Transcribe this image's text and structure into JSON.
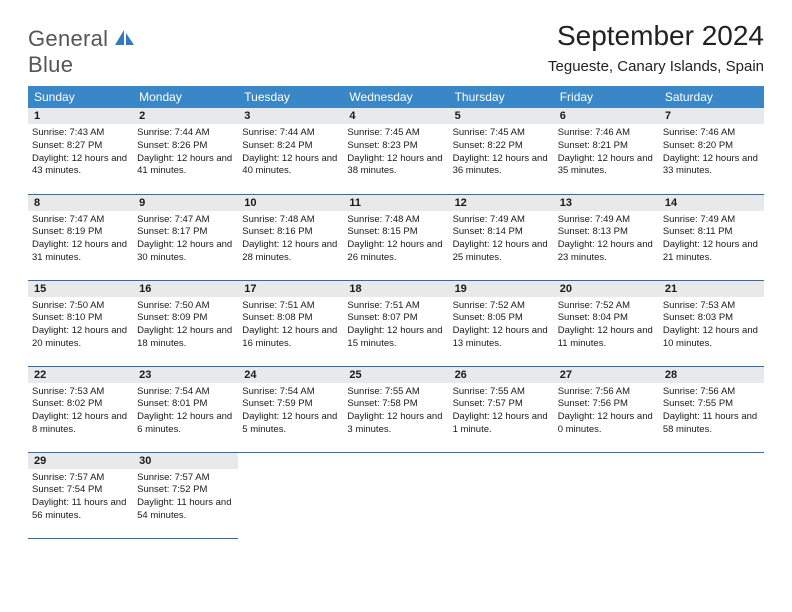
{
  "logo": {
    "line1": "General",
    "line2": "Blue"
  },
  "title": "September 2024",
  "location": "Tegueste, Canary Islands, Spain",
  "colors": {
    "header_bg": "#3a87c8",
    "header_fg": "#ffffff",
    "daynum_bg": "#e7e9ea",
    "row_border": "#2f6ea8",
    "logo_blue": "#2f7bbf"
  },
  "weekdays": [
    "Sunday",
    "Monday",
    "Tuesday",
    "Wednesday",
    "Thursday",
    "Friday",
    "Saturday"
  ],
  "days": [
    {
      "n": 1,
      "sr": "7:43 AM",
      "ss": "8:27 PM",
      "dl": "12 hours and 43 minutes."
    },
    {
      "n": 2,
      "sr": "7:44 AM",
      "ss": "8:26 PM",
      "dl": "12 hours and 41 minutes."
    },
    {
      "n": 3,
      "sr": "7:44 AM",
      "ss": "8:24 PM",
      "dl": "12 hours and 40 minutes."
    },
    {
      "n": 4,
      "sr": "7:45 AM",
      "ss": "8:23 PM",
      "dl": "12 hours and 38 minutes."
    },
    {
      "n": 5,
      "sr": "7:45 AM",
      "ss": "8:22 PM",
      "dl": "12 hours and 36 minutes."
    },
    {
      "n": 6,
      "sr": "7:46 AM",
      "ss": "8:21 PM",
      "dl": "12 hours and 35 minutes."
    },
    {
      "n": 7,
      "sr": "7:46 AM",
      "ss": "8:20 PM",
      "dl": "12 hours and 33 minutes."
    },
    {
      "n": 8,
      "sr": "7:47 AM",
      "ss": "8:19 PM",
      "dl": "12 hours and 31 minutes."
    },
    {
      "n": 9,
      "sr": "7:47 AM",
      "ss": "8:17 PM",
      "dl": "12 hours and 30 minutes."
    },
    {
      "n": 10,
      "sr": "7:48 AM",
      "ss": "8:16 PM",
      "dl": "12 hours and 28 minutes."
    },
    {
      "n": 11,
      "sr": "7:48 AM",
      "ss": "8:15 PM",
      "dl": "12 hours and 26 minutes."
    },
    {
      "n": 12,
      "sr": "7:49 AM",
      "ss": "8:14 PM",
      "dl": "12 hours and 25 minutes."
    },
    {
      "n": 13,
      "sr": "7:49 AM",
      "ss": "8:13 PM",
      "dl": "12 hours and 23 minutes."
    },
    {
      "n": 14,
      "sr": "7:49 AM",
      "ss": "8:11 PM",
      "dl": "12 hours and 21 minutes."
    },
    {
      "n": 15,
      "sr": "7:50 AM",
      "ss": "8:10 PM",
      "dl": "12 hours and 20 minutes."
    },
    {
      "n": 16,
      "sr": "7:50 AM",
      "ss": "8:09 PM",
      "dl": "12 hours and 18 minutes."
    },
    {
      "n": 17,
      "sr": "7:51 AM",
      "ss": "8:08 PM",
      "dl": "12 hours and 16 minutes."
    },
    {
      "n": 18,
      "sr": "7:51 AM",
      "ss": "8:07 PM",
      "dl": "12 hours and 15 minutes."
    },
    {
      "n": 19,
      "sr": "7:52 AM",
      "ss": "8:05 PM",
      "dl": "12 hours and 13 minutes."
    },
    {
      "n": 20,
      "sr": "7:52 AM",
      "ss": "8:04 PM",
      "dl": "12 hours and 11 minutes."
    },
    {
      "n": 21,
      "sr": "7:53 AM",
      "ss": "8:03 PM",
      "dl": "12 hours and 10 minutes."
    },
    {
      "n": 22,
      "sr": "7:53 AM",
      "ss": "8:02 PM",
      "dl": "12 hours and 8 minutes."
    },
    {
      "n": 23,
      "sr": "7:54 AM",
      "ss": "8:01 PM",
      "dl": "12 hours and 6 minutes."
    },
    {
      "n": 24,
      "sr": "7:54 AM",
      "ss": "7:59 PM",
      "dl": "12 hours and 5 minutes."
    },
    {
      "n": 25,
      "sr": "7:55 AM",
      "ss": "7:58 PM",
      "dl": "12 hours and 3 minutes."
    },
    {
      "n": 26,
      "sr": "7:55 AM",
      "ss": "7:57 PM",
      "dl": "12 hours and 1 minute."
    },
    {
      "n": 27,
      "sr": "7:56 AM",
      "ss": "7:56 PM",
      "dl": "12 hours and 0 minutes."
    },
    {
      "n": 28,
      "sr": "7:56 AM",
      "ss": "7:55 PM",
      "dl": "11 hours and 58 minutes."
    },
    {
      "n": 29,
      "sr": "7:57 AM",
      "ss": "7:54 PM",
      "dl": "11 hours and 56 minutes."
    },
    {
      "n": 30,
      "sr": "7:57 AM",
      "ss": "7:52 PM",
      "dl": "11 hours and 54 minutes."
    }
  ],
  "labels": {
    "sunrise": "Sunrise:",
    "sunset": "Sunset:",
    "daylight": "Daylight:"
  }
}
